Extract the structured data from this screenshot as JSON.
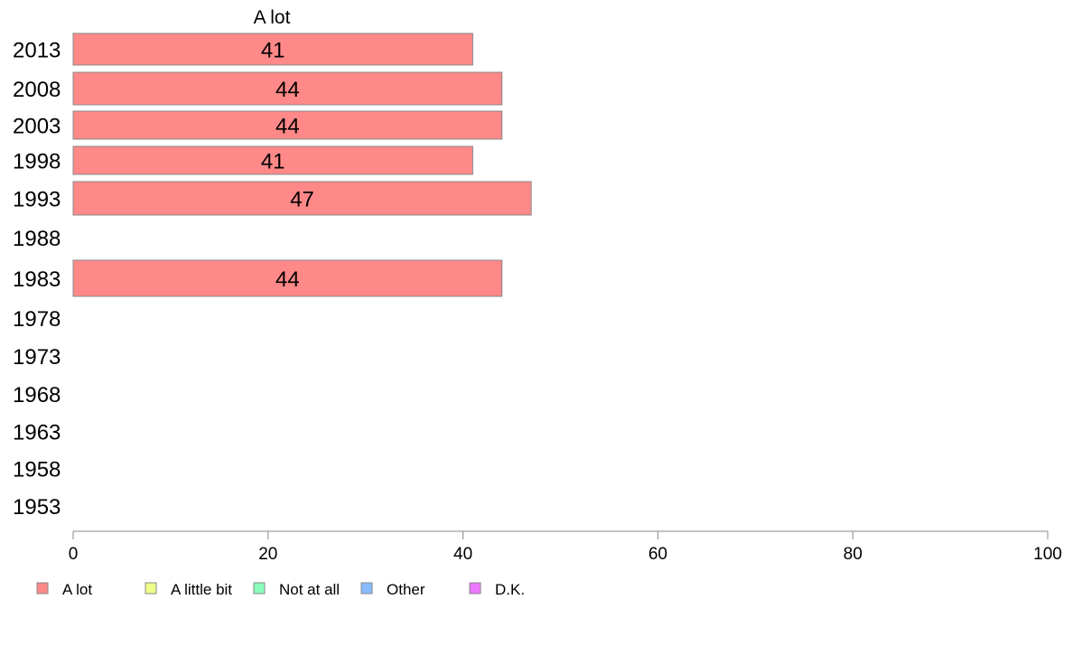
{
  "chart_data": {
    "type": "bar",
    "orientation": "horizontal",
    "column_title": "A lot",
    "categories": [
      "2013",
      "2008",
      "2003",
      "1998",
      "1993",
      "1988",
      "1983",
      "1978",
      "1973",
      "1968",
      "1963",
      "1958",
      "1953"
    ],
    "series": [
      {
        "name": "A lot",
        "color": "#ff8888",
        "values": [
          41,
          44,
          44,
          41,
          47,
          null,
          44,
          null,
          null,
          null,
          null,
          null,
          null
        ]
      }
    ],
    "xlim": [
      0,
      100
    ],
    "xticks": [
      "0",
      "20",
      "40",
      "60",
      "80",
      "100"
    ],
    "grid": false,
    "legend": {
      "placement": "bottom-left",
      "items": [
        {
          "label": "A lot",
          "color": "#ff8888"
        },
        {
          "label": "A little bit",
          "color": "#eeff88"
        },
        {
          "label": "Not at all",
          "color": "#88ffbb"
        },
        {
          "label": "Other",
          "color": "#88bbff"
        },
        {
          "label": "D.K.",
          "color": "#ee77ff"
        }
      ]
    }
  }
}
